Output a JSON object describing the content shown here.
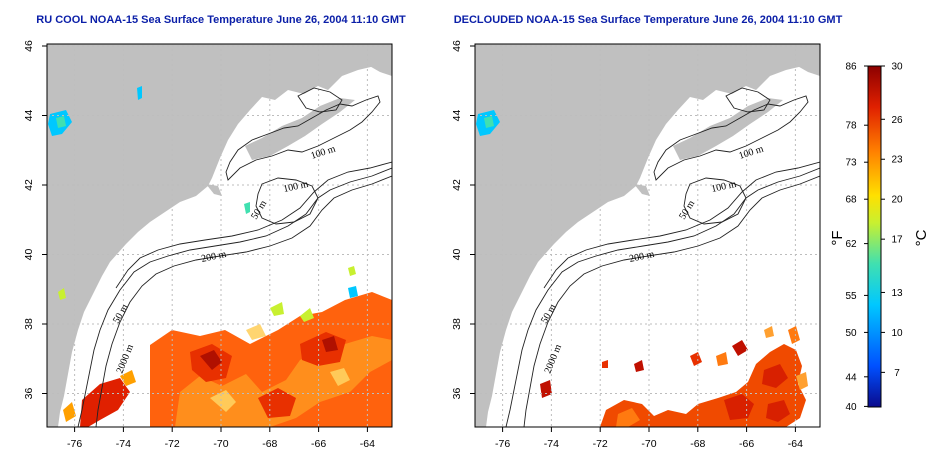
{
  "chart_data": [
    {
      "type": "heatmap",
      "title": "RU COOL NOAA-15 Sea Surface Temperature June 26, 2004 11:10 GMT",
      "xlim": [
        -77,
        -63
      ],
      "ylim": [
        35,
        46
      ],
      "x_ticks": [
        "-76",
        "-74",
        "-72",
        "-70",
        "-68",
        "-66",
        "-64"
      ],
      "y_ticks": [
        "36",
        "38",
        "40",
        "42",
        "44",
        "46"
      ],
      "grid": true,
      "contour_labels": [
        "100 m",
        "100 m",
        "50 m",
        "200 m",
        "50 m",
        "2000 m"
      ]
    },
    {
      "type": "heatmap",
      "title": "DECLOUDED NOAA-15 Sea Surface Temperature June 26, 2004 11:10 GMT",
      "xlim": [
        -77,
        -63
      ],
      "ylim": [
        35,
        46
      ],
      "x_ticks": [
        "-76",
        "-74",
        "-72",
        "-70",
        "-68",
        "-66",
        "-64"
      ],
      "y_ticks": [
        "36",
        "38",
        "40",
        "42",
        "44",
        "46"
      ],
      "grid": true,
      "contour_labels": [
        "100 m",
        "100 m",
        "50 m",
        "200 m",
        "50 m",
        "2000 m"
      ]
    }
  ],
  "colorbar": {
    "celsius_label": "°C",
    "fahrenheit_label": "°F",
    "celsius_ticks": [
      "30",
      "26",
      "23",
      "20",
      "17",
      "13",
      "10",
      "7"
    ],
    "fahrenheit_ticks": [
      "86",
      "78",
      "73",
      "68",
      "62",
      "55",
      "50",
      "44",
      "40"
    ],
    "range_c": [
      4.4,
      30
    ],
    "colors": [
      "#0a0a8c",
      "#0050ff",
      "#00c8ff",
      "#40e0b0",
      "#c8f030",
      "#ffe000",
      "#ff8000",
      "#e02000",
      "#8c0000"
    ]
  },
  "colors": {
    "land": "#c0c0c0",
    "grid": "#bdbdbd",
    "title": "#0b1fa8"
  }
}
